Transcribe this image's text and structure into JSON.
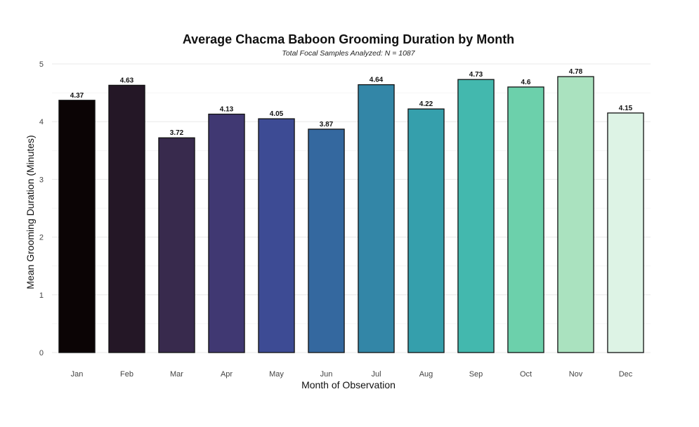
{
  "chart_data": {
    "type": "bar",
    "title": "Average Chacma Baboon Grooming Duration by Month",
    "subtitle": "Total Focal Samples Analyzed: N = 1087",
    "xlabel": "Month of Observation",
    "ylabel": "Mean Grooming Duration (Minutes)",
    "categories": [
      "Jan",
      "Feb",
      "Mar",
      "Apr",
      "May",
      "Jun",
      "Jul",
      "Aug",
      "Sep",
      "Oct",
      "Nov",
      "Dec"
    ],
    "values": [
      4.37,
      4.63,
      3.72,
      4.13,
      4.05,
      3.87,
      4.64,
      4.22,
      4.73,
      4.6,
      4.78,
      4.15
    ],
    "data_labels": [
      "4.37",
      "4.63",
      "3.72",
      "4.13",
      "4.05",
      "3.87",
      "4.64",
      "4.22",
      "4.73",
      "4.6",
      "4.78",
      "4.15"
    ],
    "colors": [
      "#0b0405",
      "#241726",
      "#382a4d",
      "#403872",
      "#3d4b94",
      "#34689f",
      "#3386a7",
      "#359fac",
      "#43b8ae",
      "#6cd0ab",
      "#aae2bf",
      "#ddf3e5"
    ],
    "ylim": [
      0,
      5
    ],
    "yticks": [
      0,
      1,
      2,
      3,
      4,
      5
    ],
    "grid": true,
    "legend": "none"
  }
}
